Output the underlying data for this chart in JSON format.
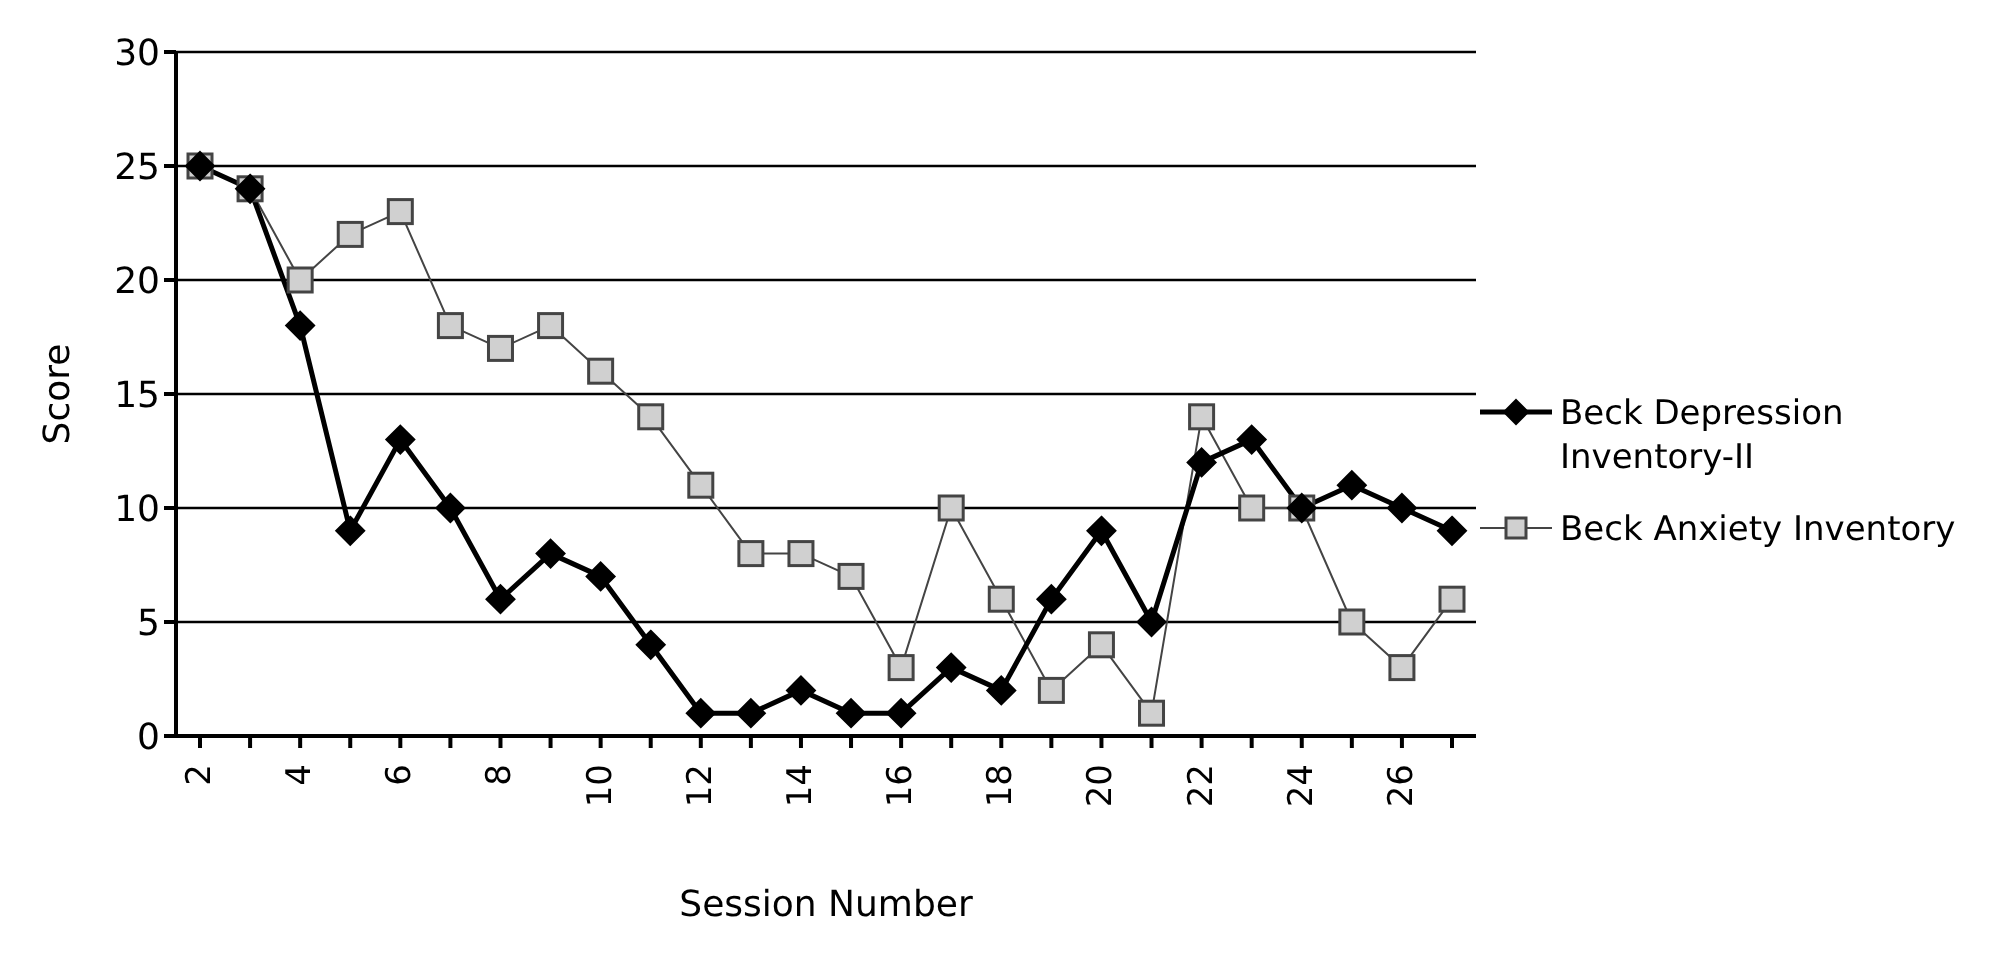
{
  "chart_data": {
    "type": "line",
    "xlabel": "Session Number",
    "ylabel": "Score",
    "categories": [
      "2",
      null,
      "4",
      null,
      "6",
      null,
      "8",
      null,
      "10",
      null,
      "12",
      null,
      "14",
      null,
      "16",
      null,
      "18",
      null,
      "20",
      null,
      "22",
      null,
      "24",
      null,
      "26",
      null
    ],
    "series": [
      {
        "name": "Beck Depression Inventory-II",
        "color": "#000000",
        "marker": "diamond",
        "values": [
          25,
          24,
          18,
          9,
          13,
          10,
          6,
          8,
          7,
          4,
          1,
          1,
          2,
          1,
          1,
          3,
          2,
          6,
          9,
          5,
          12,
          13,
          10,
          11,
          10,
          9
        ]
      },
      {
        "name": "Beck Anxiety Inventory",
        "color": "#444444",
        "marker": "square",
        "values": [
          25,
          24,
          20,
          22,
          23,
          18,
          17,
          18,
          16,
          14,
          11,
          8,
          8,
          7,
          3,
          10,
          6,
          2,
          4,
          1,
          14,
          10,
          10,
          5,
          3,
          6
        ]
      }
    ],
    "ylim": [
      0,
      30
    ],
    "yticks": [
      0,
      5,
      10,
      15,
      20,
      25,
      30
    ],
    "grid": "y",
    "legend": "right",
    "line_style": "solid"
  }
}
